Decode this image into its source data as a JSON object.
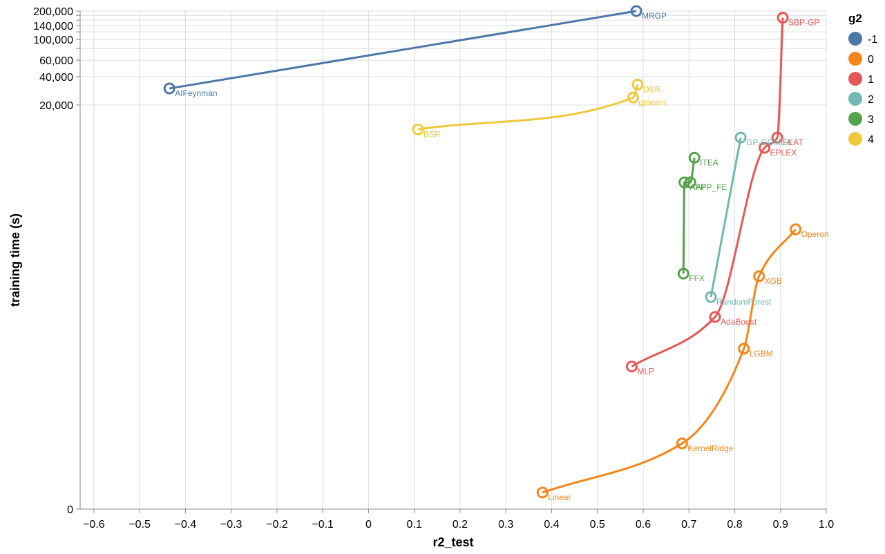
{
  "chart_data": {
    "type": "line",
    "xlabel": "r2_test",
    "ylabel": "training time (s)",
    "x_scale": "linear",
    "y_scale": "symlog",
    "xlim": [
      -0.63,
      1.0
    ],
    "x_ticks": [
      -0.6,
      -0.5,
      -0.4,
      -0.3,
      -0.2,
      -0.1,
      0.0,
      0.1,
      0.2,
      0.3,
      0.4,
      0.5,
      0.6,
      0.7,
      0.8,
      0.9,
      1.0
    ],
    "x_tick_labels": [
      "−0.6",
      "−0.5",
      "−0.4",
      "−0.3",
      "−0.2",
      "−0.1",
      "0",
      "0.1",
      "0.2",
      "0.3",
      "0.4",
      "0.5",
      "0.6",
      "0.7",
      "0.8",
      "0.9",
      "1.0"
    ],
    "y_ticks": [
      0,
      20000,
      40000,
      60000,
      100000,
      140000,
      200000
    ],
    "y_tick_labels": [
      "0",
      "20,000",
      "40,000",
      "60,000",
      "100,000",
      "140,000",
      "200,000"
    ],
    "y_grid_only": [
      80000,
      120000,
      160000,
      180000
    ],
    "grid": true,
    "legend": {
      "title": "g2",
      "position": "right",
      "entries": [
        "-1",
        "0",
        "1",
        "2",
        "3",
        "4"
      ]
    },
    "series": [
      {
        "name": "-1",
        "color": "#4c78a8",
        "points": [
          {
            "label": "AIFeynman",
            "x": -0.435,
            "y": 30000
          },
          {
            "label": "MRGP",
            "x": 0.585,
            "y": 200000
          }
        ]
      },
      {
        "name": "0",
        "color": "#f58518",
        "points": [
          {
            "label": "Linear",
            "x": 0.38,
            "y": 0.5
          },
          {
            "label": "KernelRidge",
            "x": 0.685,
            "y": 4
          },
          {
            "label": "LGBM",
            "x": 0.82,
            "y": 50
          },
          {
            "label": "XGB",
            "x": 0.853,
            "y": 300
          },
          {
            "label": "Operon",
            "x": 0.933,
            "y": 950
          }
        ]
      },
      {
        "name": "1",
        "color": "#e45756",
        "points": [
          {
            "label": "MLP",
            "x": 0.575,
            "y": 32
          },
          {
            "label": "AdaBoost",
            "x": 0.757,
            "y": 110
          },
          {
            "label": "EPLEX",
            "x": 0.865,
            "y": 7000
          },
          {
            "label": "FEAT",
            "x": 0.893,
            "y": 9000
          },
          {
            "label": "SBP-GP",
            "x": 0.905,
            "y": 170000
          }
        ]
      },
      {
        "name": "2",
        "color": "#72b7b2",
        "points": [
          {
            "label": "RandomForest",
            "x": 0.748,
            "y": 180
          },
          {
            "label": "GP-GOMEA",
            "x": 0.813,
            "y": 9000
          }
        ]
      },
      {
        "name": "3",
        "color": "#54a24b",
        "points": [
          {
            "label": "FFX",
            "x": 0.688,
            "y": 320
          },
          {
            "label": "AFP",
            "x": 0.69,
            "y": 3000
          },
          {
            "label": "AFP_FE",
            "x": 0.703,
            "y": 3000
          },
          {
            "label": "ITEA",
            "x": 0.712,
            "y": 5500
          }
        ]
      },
      {
        "name": "4",
        "color": "#eeca3b",
        "points": [
          {
            "label": "BSR",
            "x": 0.108,
            "y": 11000
          },
          {
            "label": "gplearn",
            "x": 0.578,
            "y": 24000
          },
          {
            "label": "DSR",
            "x": 0.588,
            "y": 33000
          }
        ]
      }
    ]
  }
}
